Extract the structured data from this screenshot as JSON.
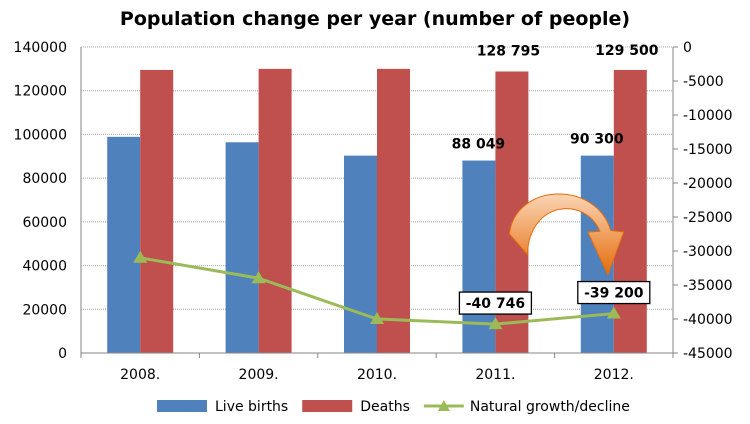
{
  "chart_data": {
    "type": "bar",
    "title": "Population change per year (number of people)",
    "categories": [
      "2008.",
      "2009.",
      "2010.",
      "2011.",
      "2012."
    ],
    "series": [
      {
        "name": "Live births",
        "type": "bar",
        "axis": "left",
        "color": "#4f81bd",
        "values": [
          98900,
          96400,
          90300,
          88049,
          90300
        ]
      },
      {
        "name": "Deaths",
        "type": "bar",
        "axis": "left",
        "color": "#c0504d",
        "values": [
          129500,
          130000,
          130000,
          128795,
          129500
        ]
      },
      {
        "name": "Natural growth/decline",
        "type": "line",
        "axis": "right",
        "color": "#9bbb59",
        "marker": "triangle",
        "values": [
          -31000,
          -34000,
          -40000,
          -40746,
          -39200
        ]
      }
    ],
    "left_axis": {
      "ylim": [
        0,
        140000
      ],
      "ticks": [
        "0",
        "20000",
        "40000",
        "60000",
        "80000",
        "100000",
        "120000",
        "140000"
      ]
    },
    "right_axis": {
      "ylim": [
        -45000,
        0
      ],
      "ticks": [
        "-45000",
        "-40000",
        "-35000",
        "-30000",
        "-25000",
        "-20000",
        "-15000",
        "-10000",
        "-5000",
        "0"
      ]
    },
    "data_labels": {
      "births_2011": "88 049",
      "births_2012": "90 300",
      "deaths_2011": "128 795",
      "deaths_2012": "129 500",
      "growth_2011": "-40 746",
      "growth_2012": "-39 200"
    },
    "annotation": {
      "type": "curved-arrow",
      "color": "#f79646",
      "from": "2011.",
      "to": "2012."
    },
    "grid": true,
    "legend": "bottom"
  }
}
